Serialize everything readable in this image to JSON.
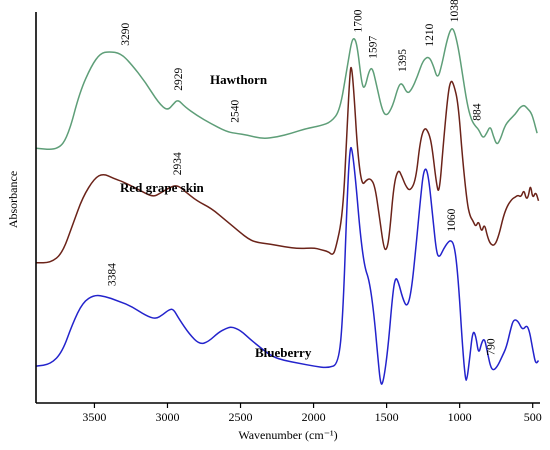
{
  "chart_data": {
    "type": "line",
    "xlabel": "Wavenumber (cm⁻¹)",
    "ylabel": "Absorbance",
    "xlim": [
      3900,
      450
    ],
    "x_reversed": true,
    "ylim": [
      -0.35,
      3.6
    ],
    "xticks": [
      3500,
      3000,
      2500,
      2000,
      1500,
      1000,
      500
    ],
    "yticks_shown": false,
    "grid": false,
    "series": [
      {
        "name": "Hawthorn",
        "color": "#5e9e78",
        "points": [
          [
            3900,
            2.32
          ],
          [
            3750,
            2.3
          ],
          [
            3680,
            2.45
          ],
          [
            3600,
            2.92
          ],
          [
            3520,
            3.2
          ],
          [
            3460,
            3.33
          ],
          [
            3400,
            3.35
          ],
          [
            3320,
            3.33
          ],
          [
            3250,
            3.22
          ],
          [
            3150,
            3.02
          ],
          [
            3060,
            2.8
          ],
          [
            3000,
            2.72
          ],
          [
            2960,
            2.79
          ],
          [
            2929,
            2.84
          ],
          [
            2880,
            2.76
          ],
          [
            2800,
            2.67
          ],
          [
            2700,
            2.58
          ],
          [
            2600,
            2.5
          ],
          [
            2540,
            2.48
          ],
          [
            2450,
            2.46
          ],
          [
            2350,
            2.42
          ],
          [
            2250,
            2.44
          ],
          [
            2150,
            2.48
          ],
          [
            2050,
            2.53
          ],
          [
            1950,
            2.56
          ],
          [
            1880,
            2.6
          ],
          [
            1820,
            2.72
          ],
          [
            1770,
            3.18
          ],
          [
            1740,
            3.46
          ],
          [
            1720,
            3.5
          ],
          [
            1700,
            3.4
          ],
          [
            1670,
            3.0
          ],
          [
            1650,
            2.95
          ],
          [
            1620,
            3.15
          ],
          [
            1597,
            3.18
          ],
          [
            1570,
            3.0
          ],
          [
            1530,
            2.72
          ],
          [
            1500,
            2.66
          ],
          [
            1460,
            2.76
          ],
          [
            1420,
            2.98
          ],
          [
            1395,
            3.02
          ],
          [
            1360,
            2.9
          ],
          [
            1330,
            2.94
          ],
          [
            1290,
            3.08
          ],
          [
            1250,
            3.26
          ],
          [
            1210,
            3.3
          ],
          [
            1180,
            3.2
          ],
          [
            1150,
            3.05
          ],
          [
            1120,
            3.22
          ],
          [
            1090,
            3.45
          ],
          [
            1060,
            3.6
          ],
          [
            1038,
            3.58
          ],
          [
            1010,
            3.4
          ],
          [
            980,
            3.1
          ],
          [
            950,
            2.8
          ],
          [
            920,
            2.62
          ],
          [
            890,
            2.55
          ],
          [
            870,
            2.52
          ],
          [
            840,
            2.42
          ],
          [
            815,
            2.48
          ],
          [
            790,
            2.56
          ],
          [
            770,
            2.45
          ],
          [
            745,
            2.35
          ],
          [
            720,
            2.42
          ],
          [
            690,
            2.56
          ],
          [
            660,
            2.62
          ],
          [
            620,
            2.68
          ],
          [
            590,
            2.75
          ],
          [
            560,
            2.78
          ],
          [
            540,
            2.75
          ],
          [
            510,
            2.7
          ],
          [
            490,
            2.6
          ],
          [
            470,
            2.48
          ]
        ],
        "label_position": "upper-left"
      },
      {
        "name": "Red grape skin",
        "color": "#6b2319",
        "points": [
          [
            3900,
            1.1
          ],
          [
            3800,
            1.1
          ],
          [
            3720,
            1.2
          ],
          [
            3650,
            1.5
          ],
          [
            3580,
            1.8
          ],
          [
            3500,
            2.0
          ],
          [
            3440,
            2.05
          ],
          [
            3370,
            2.0
          ],
          [
            3300,
            1.96
          ],
          [
            3200,
            1.88
          ],
          [
            3100,
            1.8
          ],
          [
            3050,
            1.84
          ],
          [
            2990,
            1.9
          ],
          [
            2934,
            1.93
          ],
          [
            2880,
            1.86
          ],
          [
            2800,
            1.76
          ],
          [
            2700,
            1.68
          ],
          [
            2600,
            1.55
          ],
          [
            2500,
            1.42
          ],
          [
            2450,
            1.36
          ],
          [
            2400,
            1.32
          ],
          [
            2300,
            1.3
          ],
          [
            2200,
            1.27
          ],
          [
            2100,
            1.25
          ],
          [
            2000,
            1.26
          ],
          [
            1950,
            1.24
          ],
          [
            1900,
            1.22
          ],
          [
            1870,
            1.18
          ],
          [
            1850,
            1.24
          ],
          [
            1800,
            1.6
          ],
          [
            1770,
            2.55
          ],
          [
            1750,
            3.15
          ],
          [
            1740,
            3.2
          ],
          [
            1725,
            2.95
          ],
          [
            1700,
            2.3
          ],
          [
            1670,
            1.92
          ],
          [
            1640,
            1.98
          ],
          [
            1610,
            2.0
          ],
          [
            1580,
            1.92
          ],
          [
            1550,
            1.6
          ],
          [
            1520,
            1.26
          ],
          [
            1500,
            1.23
          ],
          [
            1480,
            1.4
          ],
          [
            1450,
            1.94
          ],
          [
            1420,
            2.1
          ],
          [
            1395,
            2.02
          ],
          [
            1370,
            1.92
          ],
          [
            1340,
            1.86
          ],
          [
            1300,
            1.98
          ],
          [
            1270,
            2.4
          ],
          [
            1240,
            2.55
          ],
          [
            1210,
            2.48
          ],
          [
            1190,
            2.35
          ],
          [
            1160,
            1.95
          ],
          [
            1140,
            1.82
          ],
          [
            1110,
            2.4
          ],
          [
            1080,
            2.9
          ],
          [
            1060,
            3.05
          ],
          [
            1040,
            3.0
          ],
          [
            1010,
            2.8
          ],
          [
            980,
            2.2
          ],
          [
            950,
            1.75
          ],
          [
            930,
            1.6
          ],
          [
            910,
            1.55
          ],
          [
            890,
            1.48
          ],
          [
            870,
            1.55
          ],
          [
            850,
            1.42
          ],
          [
            830,
            1.52
          ],
          [
            810,
            1.38
          ],
          [
            790,
            1.3
          ],
          [
            760,
            1.28
          ],
          [
            730,
            1.4
          ],
          [
            700,
            1.6
          ],
          [
            670,
            1.72
          ],
          [
            640,
            1.78
          ],
          [
            620,
            1.8
          ],
          [
            600,
            1.82
          ],
          [
            580,
            1.8
          ],
          [
            560,
            1.88
          ],
          [
            545,
            1.78
          ],
          [
            530,
            1.8
          ],
          [
            515,
            1.94
          ],
          [
            500,
            1.78
          ],
          [
            480,
            1.86
          ],
          [
            460,
            1.76
          ]
        ],
        "label_position": "upper-left"
      },
      {
        "name": "Blueberry",
        "color": "#2323cc",
        "points": [
          [
            3900,
            0.0
          ],
          [
            3800,
            0.02
          ],
          [
            3720,
            0.15
          ],
          [
            3650,
            0.45
          ],
          [
            3580,
            0.68
          ],
          [
            3500,
            0.76
          ],
          [
            3420,
            0.74
          ],
          [
            3350,
            0.7
          ],
          [
            3250,
            0.64
          ],
          [
            3150,
            0.54
          ],
          [
            3080,
            0.5
          ],
          [
            3030,
            0.55
          ],
          [
            2990,
            0.6
          ],
          [
            2960,
            0.61
          ],
          [
            2920,
            0.5
          ],
          [
            2850,
            0.34
          ],
          [
            2780,
            0.23
          ],
          [
            2720,
            0.26
          ],
          [
            2650,
            0.36
          ],
          [
            2600,
            0.4
          ],
          [
            2560,
            0.42
          ],
          [
            2500,
            0.38
          ],
          [
            2430,
            0.28
          ],
          [
            2350,
            0.18
          ],
          [
            2280,
            0.1
          ],
          [
            2200,
            0.06
          ],
          [
            2100,
            0.03
          ],
          [
            2000,
            0.0
          ],
          [
            1900,
            -0.02
          ],
          [
            1830,
            0.02
          ],
          [
            1800,
            0.5
          ],
          [
            1770,
            1.8
          ],
          [
            1750,
            2.35
          ],
          [
            1735,
            2.3
          ],
          [
            1710,
            1.95
          ],
          [
            1680,
            1.4
          ],
          [
            1650,
            1.05
          ],
          [
            1620,
            0.92
          ],
          [
            1590,
            0.6
          ],
          [
            1560,
            0.1
          ],
          [
            1540,
            -0.22
          ],
          [
            1520,
            -0.15
          ],
          [
            1490,
            0.2
          ],
          [
            1460,
            0.75
          ],
          [
            1440,
            0.95
          ],
          [
            1420,
            0.9
          ],
          [
            1390,
            0.72
          ],
          [
            1360,
            0.62
          ],
          [
            1330,
            0.8
          ],
          [
            1300,
            1.25
          ],
          [
            1270,
            1.75
          ],
          [
            1250,
            2.05
          ],
          [
            1230,
            2.12
          ],
          [
            1210,
            1.98
          ],
          [
            1185,
            1.6
          ],
          [
            1160,
            1.22
          ],
          [
            1140,
            1.15
          ],
          [
            1110,
            1.25
          ],
          [
            1080,
            1.32
          ],
          [
            1060,
            1.34
          ],
          [
            1040,
            1.3
          ],
          [
            1020,
            1.1
          ],
          [
            1000,
            0.7
          ],
          [
            980,
            0.2
          ],
          [
            960,
            -0.15
          ],
          [
            950,
            -0.15
          ],
          [
            930,
            0.1
          ],
          [
            910,
            0.38
          ],
          [
            890,
            0.33
          ],
          [
            870,
            0.12
          ],
          [
            850,
            0.25
          ],
          [
            830,
            0.3
          ],
          [
            810,
            0.15
          ],
          [
            790,
            0.0
          ],
          [
            770,
            -0.05
          ],
          [
            740,
            0.0
          ],
          [
            710,
            0.1
          ],
          [
            680,
            0.2
          ],
          [
            650,
            0.4
          ],
          [
            630,
            0.5
          ],
          [
            600,
            0.48
          ],
          [
            570,
            0.38
          ],
          [
            540,
            0.44
          ],
          [
            520,
            0.36
          ],
          [
            500,
            0.18
          ],
          [
            480,
            0.02
          ],
          [
            460,
            0.06
          ]
        ],
        "label_position": "lower-middle"
      }
    ],
    "annotations": [
      {
        "text": "3290",
        "x": 3290,
        "y": 3.38,
        "series": "Hawthorn",
        "rotated": true
      },
      {
        "text": "2929",
        "x": 2929,
        "y": 2.9,
        "series": "Hawthorn",
        "rotated": true
      },
      {
        "text": "2540",
        "x": 2540,
        "y": 2.56,
        "series": "Hawthorn",
        "rotated": true
      },
      {
        "text": "1700",
        "x": 1700,
        "y": 3.52,
        "series": "Hawthorn",
        "rotated": true
      },
      {
        "text": "1597",
        "x": 1597,
        "y": 3.24,
        "series": "Hawthorn",
        "rotated": true
      },
      {
        "text": "1395",
        "x": 1395,
        "y": 3.1,
        "series": "Hawthorn",
        "rotated": true
      },
      {
        "text": "1210",
        "x": 1210,
        "y": 3.37,
        "series": "Hawthorn",
        "rotated": true
      },
      {
        "text": "1038",
        "x": 1038,
        "y": 3.63,
        "series": "Hawthorn",
        "rotated": true
      },
      {
        "text": "884",
        "x": 884,
        "y": 2.58,
        "series": "Hawthorn",
        "rotated": true
      },
      {
        "text": "2934",
        "x": 2934,
        "y": 2.0,
        "series": "Red grape skin",
        "rotated": true
      },
      {
        "text": "3384",
        "x": 3384,
        "y": 0.82,
        "series": "Blueberry",
        "rotated": true
      },
      {
        "text": "1060",
        "x": 1060,
        "y": 1.4,
        "series": "Blueberry",
        "rotated": true
      },
      {
        "text": "790",
        "x": 790,
        "y": 0.08,
        "series": "Blueberry",
        "rotated": true
      }
    ]
  }
}
